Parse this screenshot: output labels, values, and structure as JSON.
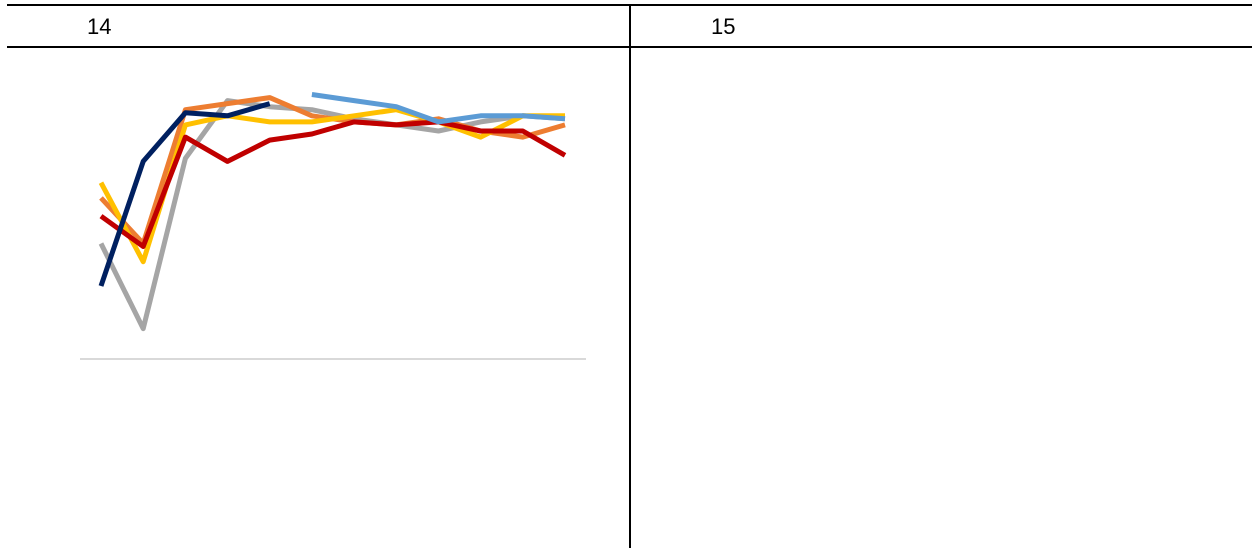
{
  "panels": [
    {
      "label": "14"
    },
    {
      "label": "15"
    }
  ],
  "chart_data": {
    "type": "line",
    "title": "",
    "xlabel": "",
    "ylabel": "",
    "legend": "none",
    "grid": false,
    "x": [
      1,
      2,
      3,
      4,
      5,
      6,
      7,
      8,
      9,
      10,
      11,
      12
    ],
    "ylim": [
      0,
      100
    ],
    "series": [
      {
        "color": "#A5A5A5",
        "values": [
          38,
          10,
          66,
          85,
          83,
          82,
          79,
          77,
          75,
          78,
          80,
          79
        ]
      },
      {
        "color": "#ED7D31",
        "values": [
          53,
          38,
          82,
          84,
          86,
          80,
          78,
          77,
          79,
          75,
          73,
          77
        ]
      },
      {
        "color": "#FFC000",
        "values": [
          58,
          32,
          77,
          80,
          78,
          78,
          80,
          82,
          78,
          73,
          80,
          80
        ]
      },
      {
        "color": "#C00000",
        "values": [
          47,
          37,
          73,
          65,
          72,
          74,
          78,
          77,
          78,
          75,
          75,
          67
        ]
      },
      {
        "color": "#5B9BD5",
        "values": [
          null,
          null,
          null,
          null,
          null,
          87,
          85,
          83,
          78,
          80,
          80,
          79
        ]
      },
      {
        "color": "#002060",
        "values": [
          24,
          65,
          81,
          80,
          84,
          null,
          null,
          null,
          null,
          null,
          null,
          null
        ]
      }
    ]
  }
}
